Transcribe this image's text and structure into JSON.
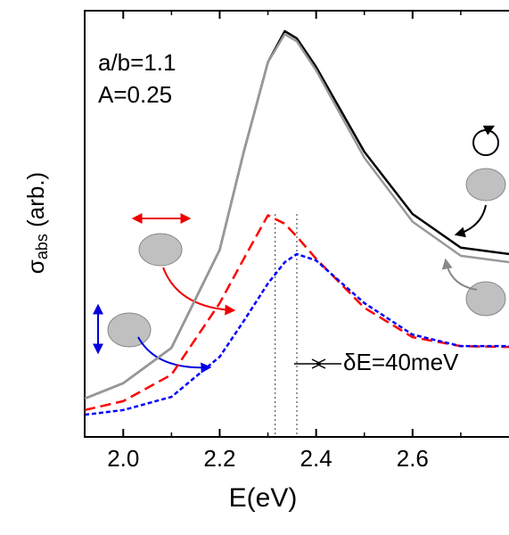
{
  "chart_data": {
    "type": "line",
    "x_label": "E(eV)",
    "y_label": {
      "symbol": "σ",
      "subscript": "abs",
      "unit": " (arb.)"
    },
    "annotations": [
      "a/b=1.1",
      "A=0.25",
      "δE=40meV"
    ],
    "x": [
      1.92,
      2.0,
      2.1,
      2.2,
      2.25,
      2.3,
      2.335,
      2.36,
      2.4,
      2.5,
      2.6,
      2.7,
      2.8
    ],
    "series": [
      {
        "color": "#000000",
        "style": "solid",
        "values": [
          0.09,
          0.126,
          0.209,
          0.439,
          0.669,
          0.879,
          0.952,
          0.935,
          0.868,
          0.669,
          0.523,
          0.444,
          0.429
        ]
      },
      {
        "color": "#999999",
        "style": "solid",
        "values": [
          0.09,
          0.126,
          0.209,
          0.439,
          0.669,
          0.879,
          0.945,
          0.928,
          0.86,
          0.655,
          0.505,
          0.425,
          0.41
        ]
      },
      {
        "color": "#ff0000",
        "style": "dashed",
        "values": [
          0.063,
          0.084,
          0.146,
          0.314,
          0.418,
          0.52,
          0.5,
          0.47,
          0.418,
          0.303,
          0.234,
          0.213,
          0.211
        ]
      },
      {
        "color": "#0000ff",
        "style": "dotted",
        "values": [
          0.052,
          0.063,
          0.094,
          0.188,
          0.272,
          0.36,
          0.41,
          0.429,
          0.414,
          0.314,
          0.24,
          0.213,
          0.213
        ]
      }
    ],
    "markers": [
      2.315,
      2.36
    ],
    "xlim": [
      1.92,
      2.8
    ],
    "ylim": [
      0,
      1
    ],
    "xticks": [
      {
        "value": 2,
        "label": "2.0"
      },
      2.2,
      2.4,
      2.6
    ],
    "xminorticks": [
      2.1,
      2.3,
      2.5,
      2.7
    ]
  }
}
